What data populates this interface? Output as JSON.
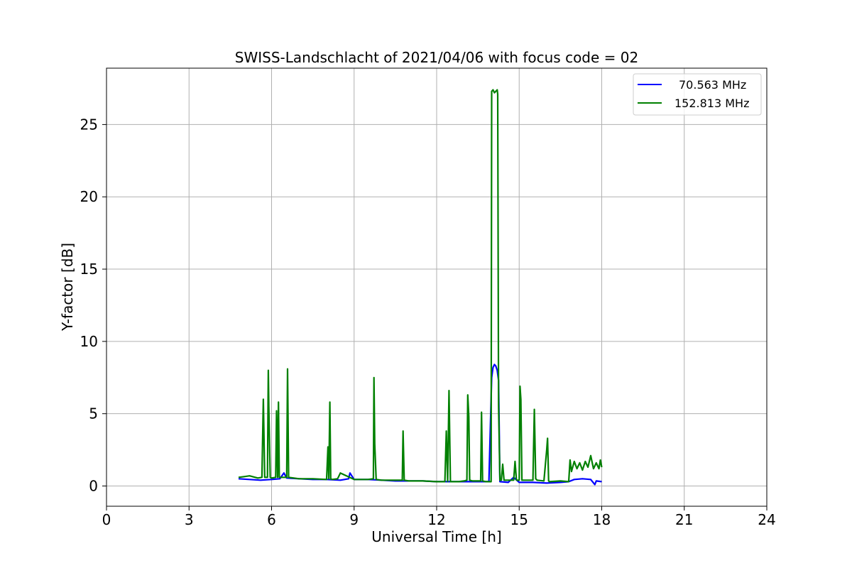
{
  "chart_data": {
    "type": "line",
    "title": "SWISS-Landschlacht of 2021/04/06 with focus code = 02",
    "xlabel": "Universal Time [h]",
    "ylabel": "Y-factor [dB]",
    "xlim": [
      0,
      24
    ],
    "ylim": [
      -1.4,
      28.9
    ],
    "xticks": [
      0,
      3,
      6,
      9,
      12,
      15,
      18,
      21,
      24
    ],
    "yticks": [
      0,
      5,
      10,
      15,
      20,
      25
    ],
    "grid": true,
    "legend_position": "top-right",
    "series": [
      {
        "name": "70.563 MHz",
        "color": "#0000ff",
        "x": [
          4.8,
          5.2,
          5.6,
          6.0,
          6.3,
          6.45,
          6.55,
          7.0,
          7.5,
          8.0,
          8.5,
          8.8,
          8.85,
          9.0,
          9.5,
          10.0,
          10.5,
          11.0,
          11.5,
          12.0,
          12.5,
          13.0,
          13.5,
          13.9,
          14.0,
          14.05,
          14.1,
          14.15,
          14.2,
          14.25,
          14.3,
          14.6,
          14.8,
          15.0,
          15.5,
          16.0,
          16.5,
          16.8,
          17.0,
          17.3,
          17.6,
          17.75,
          17.8,
          18.0
        ],
        "y": [
          0.5,
          0.45,
          0.4,
          0.45,
          0.5,
          0.9,
          0.55,
          0.5,
          0.45,
          0.45,
          0.4,
          0.5,
          0.9,
          0.45,
          0.45,
          0.4,
          0.35,
          0.35,
          0.35,
          0.3,
          0.3,
          0.3,
          0.3,
          0.3,
          7.5,
          8.2,
          8.4,
          8.3,
          8.0,
          7.3,
          0.3,
          0.25,
          0.6,
          0.25,
          0.25,
          0.2,
          0.25,
          0.3,
          0.45,
          0.5,
          0.45,
          0.1,
          0.35,
          0.3
        ]
      },
      {
        "name": "152.813 MHz",
        "color": "#008000",
        "x": [
          4.8,
          5.0,
          5.2,
          5.5,
          5.65,
          5.7,
          5.75,
          5.85,
          5.88,
          5.9,
          5.95,
          6.0,
          6.15,
          6.18,
          6.22,
          6.25,
          6.28,
          6.4,
          6.55,
          6.58,
          6.62,
          7.0,
          7.5,
          8.0,
          8.05,
          8.08,
          8.12,
          8.15,
          8.2,
          8.4,
          8.5,
          9.0,
          9.5,
          9.7,
          9.72,
          9.75,
          9.8,
          10.0,
          10.5,
          10.75,
          10.78,
          10.82,
          11.0,
          11.5,
          12.0,
          12.3,
          12.35,
          12.4,
          12.45,
          12.5,
          12.8,
          13.0,
          13.1,
          13.13,
          13.17,
          13.2,
          13.3,
          13.5,
          13.6,
          13.63,
          13.67,
          13.8,
          13.98,
          14.0,
          14.05,
          14.1,
          14.15,
          14.2,
          14.22,
          14.25,
          14.3,
          14.35,
          14.4,
          14.45,
          14.5,
          14.8,
          14.85,
          14.9,
          15.0,
          15.03,
          15.06,
          15.1,
          15.2,
          15.5,
          15.55,
          15.6,
          15.65,
          15.9,
          16.0,
          16.03,
          16.07,
          16.1,
          16.5,
          16.8,
          16.85,
          16.9,
          17.0,
          17.1,
          17.2,
          17.3,
          17.4,
          17.5,
          17.6,
          17.7,
          17.8,
          17.9,
          17.95,
          18.0
        ],
        "y": [
          0.6,
          0.65,
          0.7,
          0.55,
          0.6,
          6.0,
          0.6,
          0.6,
          8.0,
          5.5,
          0.6,
          0.55,
          0.6,
          5.2,
          0.6,
          5.8,
          0.6,
          0.6,
          0.6,
          8.1,
          0.6,
          0.5,
          0.5,
          0.45,
          2.7,
          0.5,
          5.8,
          0.5,
          0.45,
          0.5,
          0.9,
          0.45,
          0.45,
          0.5,
          7.5,
          2.9,
          0.45,
          0.4,
          0.4,
          0.4,
          3.8,
          0.4,
          0.35,
          0.35,
          0.3,
          0.3,
          3.8,
          0.3,
          6.6,
          0.3,
          0.3,
          0.35,
          0.4,
          6.3,
          4.8,
          0.4,
          0.35,
          0.35,
          0.35,
          5.1,
          0.35,
          0.3,
          0.3,
          27.3,
          27.4,
          27.2,
          27.3,
          27.4,
          27.1,
          5.6,
          0.4,
          0.4,
          1.5,
          0.4,
          0.4,
          0.4,
          1.7,
          0.4,
          0.4,
          6.9,
          6.0,
          0.4,
          0.4,
          0.4,
          5.3,
          0.5,
          0.4,
          0.35,
          2.5,
          3.3,
          0.35,
          0.3,
          0.35,
          0.3,
          1.8,
          1.0,
          1.7,
          1.2,
          1.6,
          1.1,
          1.7,
          1.3,
          2.1,
          1.2,
          1.6,
          1.2,
          1.8,
          1.3
        ]
      }
    ]
  }
}
